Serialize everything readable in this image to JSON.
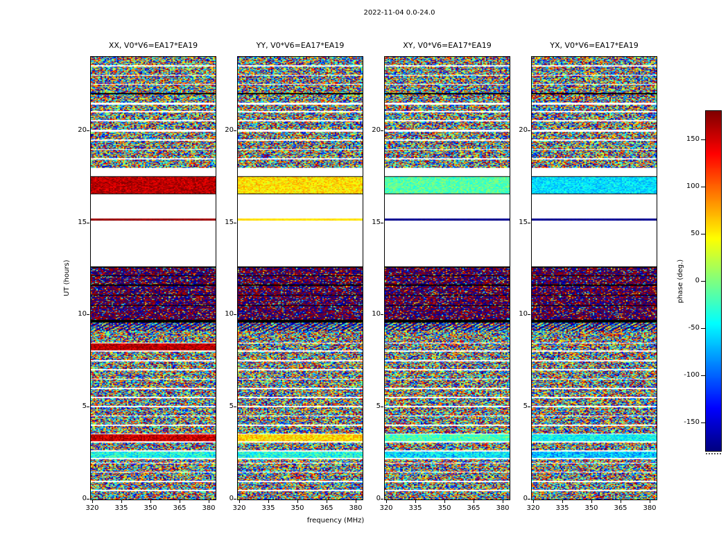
{
  "figure": {
    "title": "2022-11-04 0.0-24.0",
    "xlabel": "frequency (MHz)",
    "ylabel": "UT (hours)",
    "colorbar_label": "phase (deg.)"
  },
  "panels": [
    {
      "title": "XX, V0*V6=EA17*EA19"
    },
    {
      "title": "YY, V0*V6=EA17*EA19"
    },
    {
      "title": "XY, V0*V6=EA17*EA19"
    },
    {
      "title": "YX, V0*V6=EA17*EA19"
    }
  ],
  "axes": {
    "xticks": [
      "320",
      "335",
      "350",
      "365",
      "380"
    ],
    "yticks": [
      "0",
      "5",
      "10",
      "15",
      "20"
    ]
  },
  "colorbar": {
    "ticks": [
      "150",
      "100",
      "50",
      "0",
      "-50",
      "-100",
      "-150"
    ],
    "tick_values": [
      150,
      100,
      50,
      0,
      -50,
      -100,
      -150
    ],
    "range_deg": [
      -180,
      180
    ]
  },
  "chart_data": {
    "type": "heatmap",
    "title": "2022-11-04 0.0-24.0",
    "xlabel": "frequency (MHz)",
    "ylabel": "UT (hours)",
    "colorbar_label": "phase (deg.)",
    "x_range_mhz": [
      319.3,
      383.6
    ],
    "y_range_hours": [
      0,
      24
    ],
    "x_tick_values_mhz": [
      320,
      335,
      350,
      365,
      380
    ],
    "y_tick_values_hours": [
      0,
      5,
      10,
      15,
      20
    ],
    "colormap": "jet",
    "color_range_deg": [
      -180,
      180
    ],
    "panels": [
      "XX, V0*V6=EA17*EA19",
      "YY, V0*V6=EA17*EA19",
      "XY, V0*V6=EA17*EA19",
      "YX, V0*V6=EA17*EA19"
    ],
    "bands_note": "time bands [style, t0_hours, t1_hours, phases_deg_per_panel(XX,YY,XY,YX), noise_amp_deg]; white = no data gap",
    "bands": [
      [
        "noise",
        0.0,
        0.45
      ],
      [
        "white",
        0.45,
        0.51
      ],
      [
        "noise",
        0.51,
        0.95
      ],
      [
        "white",
        0.95,
        1.01
      ],
      [
        "noise",
        1.01,
        1.45
      ],
      [
        "white",
        1.45,
        1.51
      ],
      [
        "noise",
        1.51,
        1.95
      ],
      [
        "white",
        1.95,
        2.01
      ],
      [
        "noise",
        2.01,
        2.2
      ],
      [
        "white",
        2.2,
        2.26
      ],
      [
        "special",
        2.26,
        2.6,
        [
          -40,
          -35,
          -55,
          -65
        ],
        45
      ],
      [
        "white",
        2.6,
        2.66
      ],
      [
        "noise",
        2.66,
        3.1
      ],
      [
        "white",
        3.1,
        3.16
      ],
      [
        "special",
        3.16,
        3.52,
        [
          155,
          60,
          -20,
          -45
        ],
        35
      ],
      [
        "white",
        3.52,
        3.58
      ],
      [
        "noise",
        3.58,
        4.0
      ],
      [
        "white",
        4.0,
        4.06
      ],
      [
        "noise",
        4.06,
        4.5
      ],
      [
        "white",
        4.5,
        4.56
      ],
      [
        "noise",
        4.56,
        5.0
      ],
      [
        "white",
        5.0,
        5.06
      ],
      [
        "noise",
        5.06,
        5.5
      ],
      [
        "white",
        5.5,
        5.56
      ],
      [
        "noise",
        5.56,
        6.0
      ],
      [
        "white",
        6.0,
        6.06
      ],
      [
        "noise",
        6.06,
        6.5
      ],
      [
        "white",
        6.5,
        6.56
      ],
      [
        "noise",
        6.56,
        7.0
      ],
      [
        "white",
        7.0,
        7.06
      ],
      [
        "noise",
        7.06,
        7.5
      ],
      [
        "white",
        7.5,
        7.56
      ],
      [
        "noise",
        7.56,
        8.0
      ],
      [
        "white",
        8.0,
        8.1
      ],
      [
        "special",
        8.1,
        8.45,
        [
          160,
          null,
          null,
          null
        ],
        30
      ],
      [
        "white",
        8.45,
        8.51
      ],
      [
        "noise",
        8.51,
        9.15
      ],
      [
        "moire",
        9.15,
        9.6
      ],
      [
        "black",
        9.6,
        9.75
      ],
      [
        "dark",
        9.75,
        10.02
      ],
      [
        "dark",
        10.02,
        10.5
      ],
      [
        "black",
        10.5,
        10.55
      ],
      [
        "dark",
        10.55,
        11.05
      ],
      [
        "black",
        11.05,
        11.1
      ],
      [
        "dark",
        11.1,
        11.6
      ],
      [
        "black",
        11.6,
        11.65
      ],
      [
        "dark",
        11.65,
        12.1
      ],
      [
        "black",
        12.1,
        12.15
      ],
      [
        "dark",
        12.15,
        12.58
      ],
      [
        "black",
        12.58,
        12.63
      ],
      [
        "white",
        12.63,
        15.12
      ],
      [
        "special",
        15.12,
        15.22,
        [
          170,
          55,
          -175,
          -175
        ],
        8
      ],
      [
        "white",
        15.22,
        16.55
      ],
      [
        "black",
        16.55,
        16.6
      ],
      [
        "special",
        16.6,
        17.48,
        [
          160,
          55,
          -15,
          -55
        ],
        28
      ],
      [
        "black",
        17.48,
        17.53
      ],
      [
        "white",
        17.53,
        18.0
      ],
      [
        "noise",
        18.0,
        18.45
      ],
      [
        "white",
        18.45,
        18.51
      ],
      [
        "noise",
        18.51,
        18.95
      ],
      [
        "white",
        18.95,
        19.01
      ],
      [
        "noise",
        19.01,
        19.45
      ],
      [
        "white",
        19.45,
        19.51
      ],
      [
        "noise",
        19.51,
        19.95
      ],
      [
        "white",
        19.95,
        20.05
      ],
      [
        "noise",
        20.05,
        20.5
      ],
      [
        "white",
        20.5,
        20.56
      ],
      [
        "noise",
        20.56,
        21.0
      ],
      [
        "white",
        21.0,
        21.06
      ],
      [
        "noise",
        21.06,
        21.42
      ],
      [
        "white",
        21.42,
        21.52
      ],
      [
        "noise",
        21.52,
        21.95
      ],
      [
        "black",
        21.95,
        22.04
      ],
      [
        "noise",
        22.04,
        22.48
      ],
      [
        "white",
        22.48,
        22.54
      ],
      [
        "noise",
        22.54,
        22.98
      ],
      [
        "white",
        22.98,
        23.04
      ],
      [
        "noise",
        23.04,
        23.48
      ],
      [
        "white",
        23.48,
        23.54
      ],
      [
        "noise",
        23.54,
        24.0
      ]
    ]
  }
}
